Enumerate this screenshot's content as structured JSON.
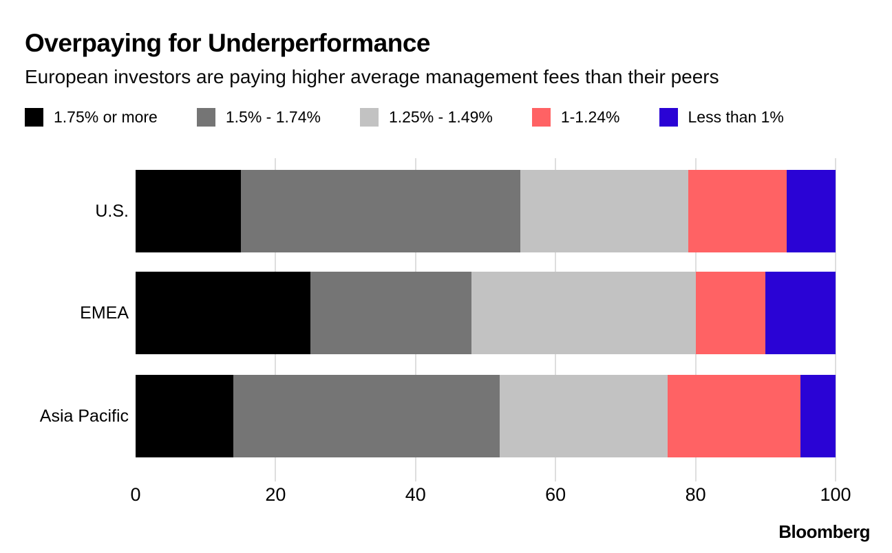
{
  "header": {
    "title": "Overpaying for Underperformance",
    "subtitle": "European investors are paying higher average management fees than their peers"
  },
  "footer": {
    "brand": "Bloomberg"
  },
  "chart_data": {
    "type": "bar",
    "orientation": "horizontal",
    "stacked": true,
    "title": "Overpaying for Underperformance",
    "subtitle": "European investors are paying higher average management fees than their peers",
    "categories": [
      "U.S.",
      "EMEA",
      "Asia Pacific"
    ],
    "series": [
      {
        "name": "1.75% or more",
        "color": "#000000",
        "values": [
          15,
          25,
          14
        ]
      },
      {
        "name": "1.5% - 1.74%",
        "color": "#757575",
        "values": [
          40,
          23,
          38
        ]
      },
      {
        "name": "1.25% - 1.49%",
        "color": "#c2c2c2",
        "values": [
          24,
          32,
          24
        ]
      },
      {
        "name": "1-1.24%",
        "color": "#ff6264",
        "values": [
          14,
          10,
          19
        ]
      },
      {
        "name": "Less than 1%",
        "color": "#2a03d5",
        "values": [
          7,
          10,
          5
        ]
      }
    ],
    "xlim": [
      0,
      100
    ],
    "x_ticks": [
      0,
      20,
      40,
      60,
      80,
      100
    ],
    "grid": true,
    "gridline_color": "#dedede",
    "legend_position": "top"
  }
}
